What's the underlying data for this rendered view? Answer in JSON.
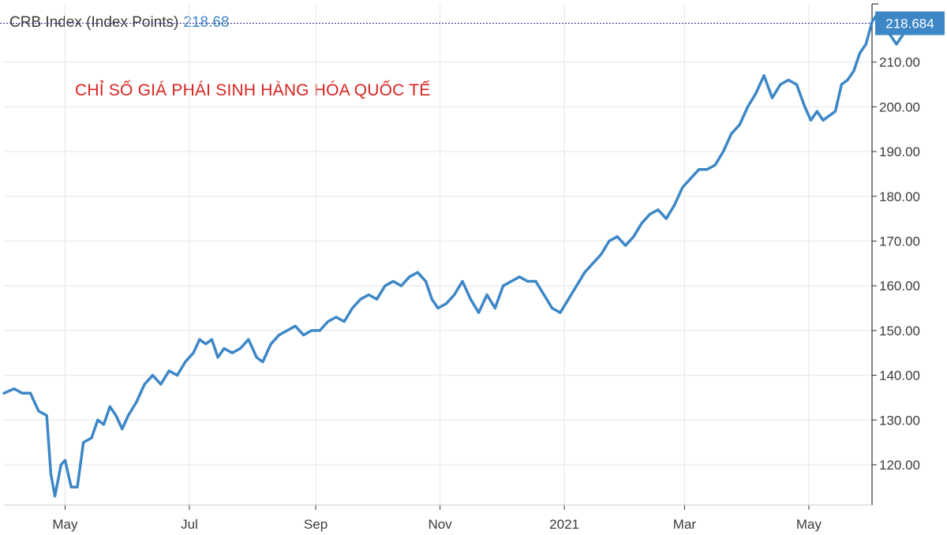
{
  "header": {
    "series_label": "CRB Index (Index Points)",
    "last_value": "218.68"
  },
  "annotation": "CHỈ SỐ GIÁ PHÁI SINH HÀNG HÓA QUỐC TẾ",
  "colors": {
    "line": "#3d87c7",
    "badge": "#3d87c7",
    "grid": "#e6e6e6",
    "ref_line": "#2f2f9e",
    "annotation": "#d9231f"
  },
  "chart_data": {
    "type": "line",
    "title": "CRB Index (Index Points)",
    "last_value_label": "218.684",
    "y_axis": {
      "side": "right",
      "ticks": [
        120,
        130,
        140,
        150,
        160,
        170,
        180,
        190,
        200,
        210
      ],
      "tick_labels": [
        "120.00",
        "130.00",
        "140.00",
        "150.00",
        "160.00",
        "170.00",
        "180.00",
        "190.00",
        "200.00",
        "210.00"
      ],
      "ylim": [
        111,
        223
      ]
    },
    "x_axis": {
      "ticks": [
        "2020-05-01",
        "2020-07-01",
        "2020-09-01",
        "2020-11-01",
        "2021-01-01",
        "2021-03-01",
        "2021-05-01"
      ],
      "tick_labels": [
        "May",
        "Jul",
        "Sep",
        "Nov",
        "2021",
        "Mar",
        "May"
      ],
      "xlim": [
        "2020-04-01",
        "2021-06-01"
      ]
    },
    "grid": true,
    "series": [
      {
        "values": [
          [
            "2020-04-01",
            136
          ],
          [
            "2020-04-06",
            137
          ],
          [
            "2020-04-10",
            136
          ],
          [
            "2020-04-14",
            136
          ],
          [
            "2020-04-16",
            134
          ],
          [
            "2020-04-18",
            132
          ],
          [
            "2020-04-22",
            131
          ],
          [
            "2020-04-24",
            118
          ],
          [
            "2020-04-26",
            113
          ],
          [
            "2020-04-29",
            120
          ],
          [
            "2020-05-01",
            121
          ],
          [
            "2020-05-04",
            115
          ],
          [
            "2020-05-07",
            115
          ],
          [
            "2020-05-10",
            125
          ],
          [
            "2020-05-14",
            126
          ],
          [
            "2020-05-17",
            130
          ],
          [
            "2020-05-20",
            129
          ],
          [
            "2020-05-23",
            133
          ],
          [
            "2020-05-26",
            131
          ],
          [
            "2020-05-29",
            128
          ],
          [
            "2020-06-01",
            131
          ],
          [
            "2020-06-05",
            134
          ],
          [
            "2020-06-09",
            138
          ],
          [
            "2020-06-13",
            140
          ],
          [
            "2020-06-17",
            138
          ],
          [
            "2020-06-21",
            141
          ],
          [
            "2020-06-25",
            140
          ],
          [
            "2020-06-29",
            143
          ],
          [
            "2020-07-03",
            145
          ],
          [
            "2020-07-06",
            148
          ],
          [
            "2020-07-09",
            147
          ],
          [
            "2020-07-12",
            148
          ],
          [
            "2020-07-15",
            144
          ],
          [
            "2020-07-18",
            146
          ],
          [
            "2020-07-22",
            145
          ],
          [
            "2020-07-26",
            146
          ],
          [
            "2020-07-30",
            148
          ],
          [
            "2020-08-03",
            144
          ],
          [
            "2020-08-06",
            143
          ],
          [
            "2020-08-10",
            147
          ],
          [
            "2020-08-14",
            149
          ],
          [
            "2020-08-18",
            150
          ],
          [
            "2020-08-22",
            151
          ],
          [
            "2020-08-26",
            149
          ],
          [
            "2020-08-30",
            150
          ],
          [
            "2020-09-03",
            150
          ],
          [
            "2020-09-07",
            152
          ],
          [
            "2020-09-11",
            153
          ],
          [
            "2020-09-15",
            152
          ],
          [
            "2020-09-19",
            155
          ],
          [
            "2020-09-23",
            157
          ],
          [
            "2020-09-27",
            158
          ],
          [
            "2020-10-01",
            157
          ],
          [
            "2020-10-05",
            160
          ],
          [
            "2020-10-09",
            161
          ],
          [
            "2020-10-13",
            160
          ],
          [
            "2020-10-17",
            162
          ],
          [
            "2020-10-21",
            163
          ],
          [
            "2020-10-25",
            161
          ],
          [
            "2020-10-28",
            157
          ],
          [
            "2020-10-31",
            155
          ],
          [
            "2020-11-04",
            156
          ],
          [
            "2020-11-08",
            158
          ],
          [
            "2020-11-12",
            161
          ],
          [
            "2020-11-16",
            157
          ],
          [
            "2020-11-20",
            154
          ],
          [
            "2020-11-24",
            158
          ],
          [
            "2020-11-28",
            155
          ],
          [
            "2020-12-02",
            160
          ],
          [
            "2020-12-06",
            161
          ],
          [
            "2020-12-10",
            162
          ],
          [
            "2020-12-14",
            161
          ],
          [
            "2020-12-18",
            161
          ],
          [
            "2020-12-22",
            158
          ],
          [
            "2020-12-26",
            155
          ],
          [
            "2020-12-30",
            154
          ],
          [
            "2021-01-03",
            157
          ],
          [
            "2021-01-07",
            160
          ],
          [
            "2021-01-11",
            163
          ],
          [
            "2021-01-15",
            165
          ],
          [
            "2021-01-19",
            167
          ],
          [
            "2021-01-23",
            170
          ],
          [
            "2021-01-27",
            171
          ],
          [
            "2021-01-31",
            169
          ],
          [
            "2021-02-04",
            171
          ],
          [
            "2021-02-08",
            174
          ],
          [
            "2021-02-12",
            176
          ],
          [
            "2021-02-16",
            177
          ],
          [
            "2021-02-20",
            175
          ],
          [
            "2021-02-24",
            178
          ],
          [
            "2021-02-28",
            182
          ],
          [
            "2021-03-04",
            184
          ],
          [
            "2021-03-08",
            186
          ],
          [
            "2021-03-12",
            186
          ],
          [
            "2021-03-16",
            187
          ],
          [
            "2021-03-20",
            190
          ],
          [
            "2021-03-24",
            194
          ],
          [
            "2021-03-28",
            196
          ],
          [
            "2021-04-01",
            200
          ],
          [
            "2021-04-05",
            203
          ],
          [
            "2021-04-09",
            207
          ],
          [
            "2021-04-13",
            202
          ],
          [
            "2021-04-17",
            205
          ],
          [
            "2021-04-21",
            206
          ],
          [
            "2021-04-25",
            205
          ],
          [
            "2021-04-29",
            200
          ],
          [
            "2021-05-02",
            197
          ],
          [
            "2021-05-05",
            199
          ],
          [
            "2021-05-08",
            197
          ],
          [
            "2021-05-11",
            198
          ],
          [
            "2021-05-14",
            199
          ],
          [
            "2021-05-17",
            205
          ],
          [
            "2021-05-20",
            206
          ],
          [
            "2021-05-23",
            208
          ],
          [
            "2021-05-26",
            212
          ],
          [
            "2021-05-29",
            214
          ],
          [
            "2021-06-01",
            219
          ],
          [
            "2021-06-04",
            221
          ],
          [
            "2021-06-07",
            218
          ],
          [
            "2021-06-10",
            216
          ],
          [
            "2021-06-13",
            214
          ],
          [
            "2021-06-16",
            216
          ],
          [
            "2021-06-19",
            218.684
          ]
        ]
      }
    ]
  }
}
